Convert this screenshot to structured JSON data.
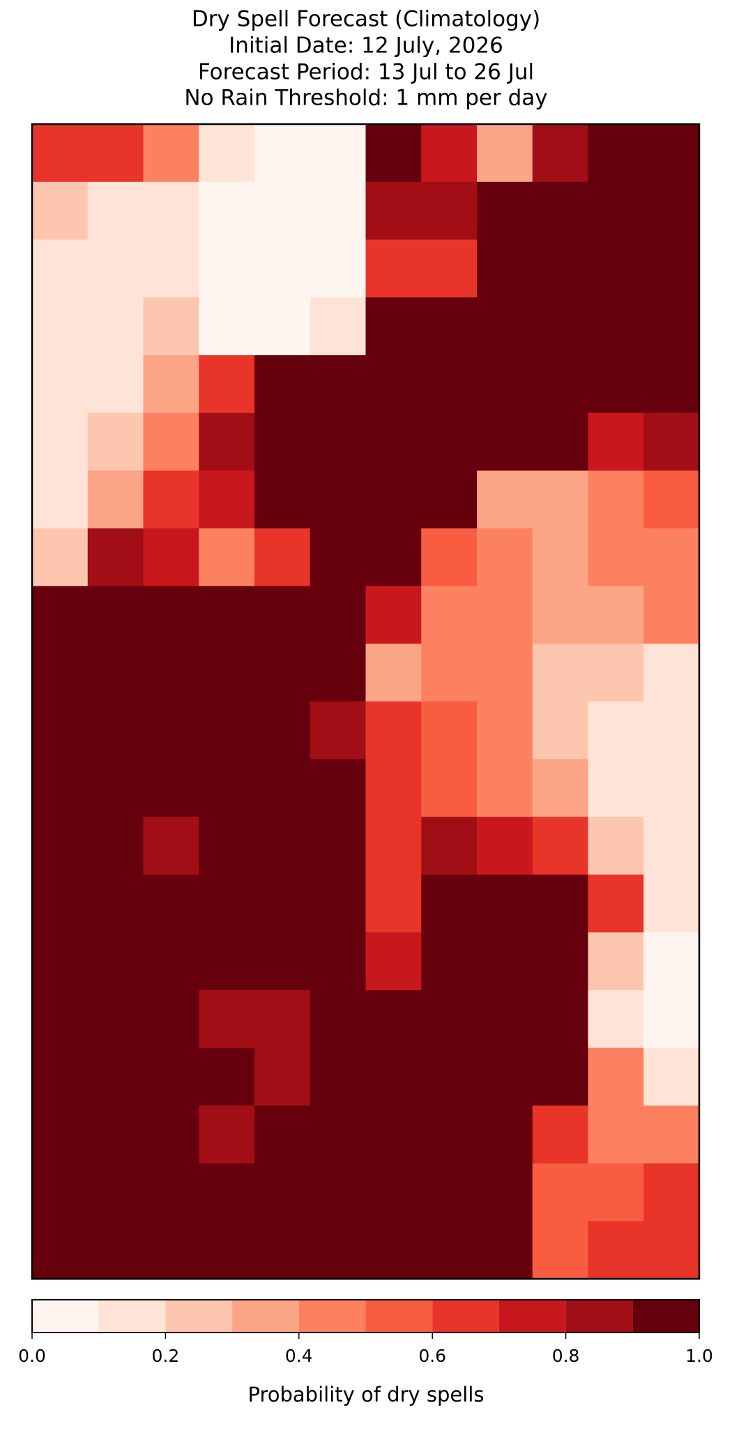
{
  "chart_data": {
    "type": "heatmap",
    "title": "Dry Spell Forecast (Climatology)",
    "subtitles": [
      "Initial Date: 12 July, 2026",
      "Forecast Period: 13 Jul to 26 Jul",
      "No Rain Threshold: 1 mm per day"
    ],
    "colorbar_label": "Probability of dry spells",
    "levels": [
      0,
      0.1,
      0.2,
      0.3,
      0.4,
      0.5,
      0.6,
      0.7,
      0.8,
      0.9,
      1
    ],
    "colors": [
      "#fff5f0",
      "#fee3d6",
      "#fdc6af",
      "#fca486",
      "#fc8161",
      "#f85d42",
      "#e83429",
      "#c9181d",
      "#a10e15",
      "#67000d"
    ],
    "cticks": [
      {
        "value": 0,
        "label": "0.0"
      },
      {
        "value": 0.2,
        "label": "0.2"
      },
      {
        "value": 0.4,
        "label": "0.4"
      },
      {
        "value": 0.6,
        "label": "0.6"
      },
      {
        "value": 0.8,
        "label": "0.8"
      },
      {
        "value": 1,
        "label": "1.0"
      }
    ],
    "grid": [
      [
        0.6,
        0.6,
        0.4,
        0.1,
        0.0,
        0.0,
        0.9,
        0.7,
        0.3,
        0.8,
        1,
        1
      ],
      [
        0.2,
        0.1,
        0.1,
        0.0,
        0.0,
        0.0,
        0.8,
        0.8,
        1,
        1,
        1,
        1
      ],
      [
        0.1,
        0.1,
        0.1,
        0.0,
        0.0,
        0.0,
        0.6,
        0.6,
        1,
        1,
        1,
        1
      ],
      [
        0.1,
        0.1,
        0.2,
        0.0,
        0.0,
        0.1,
        1,
        1,
        1,
        1,
        1,
        1
      ],
      [
        0.1,
        0.1,
        0.3,
        0.6,
        0.9,
        0.9,
        1,
        1,
        1,
        1,
        1,
        1
      ],
      [
        0.1,
        0.2,
        0.4,
        0.8,
        1,
        1,
        1,
        1,
        1,
        1,
        0.7,
        0.8
      ],
      [
        0.1,
        0.3,
        0.6,
        0.7,
        1,
        1,
        1,
        0.9,
        0.3,
        0.3,
        0.4,
        0.5
      ],
      [
        0.2,
        0.8,
        0.7,
        0.4,
        0.6,
        1,
        1,
        0.5,
        0.4,
        0.3,
        0.4,
        0.4
      ],
      [
        1,
        1,
        1,
        1,
        1,
        1,
        0.7,
        0.4,
        0.4,
        0.3,
        0.3,
        0.4
      ],
      [
        1,
        1,
        1,
        1,
        1,
        0.9,
        0.3,
        0.4,
        0.4,
        0.2,
        0.2,
        0.1
      ],
      [
        1,
        1,
        1,
        1,
        1,
        0.8,
        0.6,
        0.5,
        0.4,
        0.2,
        0.1,
        0.1
      ],
      [
        1,
        1,
        1,
        1,
        1,
        1,
        0.6,
        0.5,
        0.4,
        0.3,
        0.1,
        0.1
      ],
      [
        1,
        1,
        0.8,
        1,
        1,
        1,
        0.6,
        0.8,
        0.7,
        0.6,
        0.2,
        0.1
      ],
      [
        1,
        1,
        1,
        1,
        1,
        1,
        0.6,
        0.9,
        1,
        0.9,
        0.6,
        0.1
      ],
      [
        1,
        1,
        1,
        0.9,
        1,
        1,
        0.7,
        1,
        1,
        1,
        0.2,
        0.0
      ],
      [
        1,
        1,
        0.9,
        0.8,
        0.8,
        1,
        0.9,
        1,
        1,
        1,
        0.1,
        0.0
      ],
      [
        1,
        1,
        1,
        0.9,
        0.8,
        1,
        1,
        1,
        1,
        1,
        0.4,
        0.1
      ],
      [
        1,
        1,
        1,
        0.8,
        0.9,
        1,
        1,
        1,
        1,
        0.6,
        0.4,
        0.4
      ],
      [
        1,
        1,
        1,
        0.9,
        1,
        1,
        1,
        1,
        1,
        0.5,
        0.5,
        0.6
      ],
      [
        1,
        1,
        1,
        1,
        1,
        1,
        1,
        1,
        1,
        0.5,
        0.6,
        0.6
      ]
    ]
  }
}
